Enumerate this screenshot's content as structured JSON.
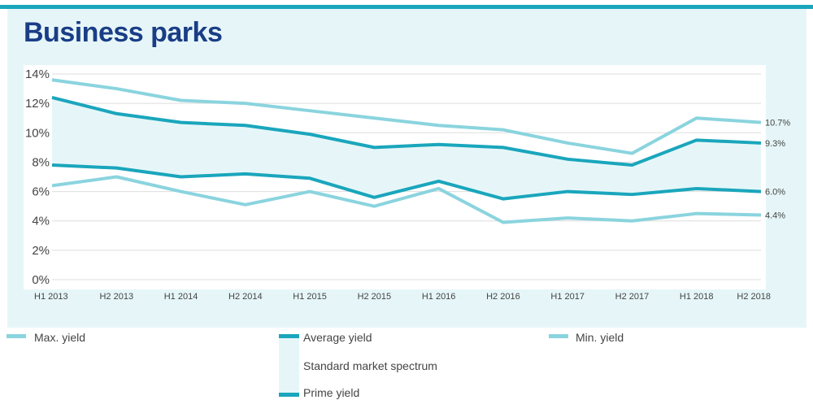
{
  "title": "Business parks",
  "colors": {
    "max": "#8ad4de",
    "avg": "#1aa6bc",
    "prime": "#1aa6bc",
    "min": "#8ad4de",
    "band": "#e6f6f8",
    "title": "#1a3d86",
    "accent": "#1aa6bc"
  },
  "legend": {
    "max": "Max. yield",
    "avg": "Average yield",
    "min": "Min. yield",
    "band": "Standard market spectrum",
    "prime": "Prime yield"
  },
  "chart_data": {
    "type": "line",
    "categories": [
      "H1 2013",
      "H2 2013",
      "H1 2014",
      "H2 2014",
      "H1 2015",
      "H2 2015",
      "H1 2016",
      "H2 2016",
      "H1 2017",
      "H2 2017",
      "H1 2018",
      "H2 2018"
    ],
    "ylim": [
      0,
      14
    ],
    "yticks": [
      0,
      2,
      4,
      6,
      8,
      10,
      12,
      14
    ],
    "ytick_labels": [
      "0%",
      "2%",
      "4%",
      "6%",
      "8%",
      "10%",
      "12%",
      "14%"
    ],
    "series": [
      {
        "key": "max",
        "name": "Max. yield",
        "values": [
          13.6,
          13.0,
          12.2,
          12.0,
          11.5,
          11.0,
          10.5,
          10.2,
          9.3,
          8.6,
          11.0,
          10.7
        ],
        "end_label": "10.7%"
      },
      {
        "key": "avg",
        "name": "Average yield",
        "values": [
          12.4,
          11.3,
          10.7,
          10.5,
          9.9,
          9.0,
          9.2,
          9.0,
          8.2,
          7.8,
          9.5,
          9.3
        ],
        "end_label": "9.3%"
      },
      {
        "key": "prime",
        "name": "Prime yield",
        "values": [
          7.8,
          7.6,
          7.0,
          7.2,
          6.9,
          5.6,
          6.7,
          5.5,
          6.0,
          5.8,
          6.2,
          6.0
        ],
        "end_label": "6.0%"
      },
      {
        "key": "min",
        "name": "Min. yield",
        "values": [
          6.4,
          7.0,
          6.0,
          5.1,
          6.0,
          5.0,
          6.2,
          3.9,
          4.2,
          4.0,
          4.5,
          4.4
        ],
        "end_label": "4.4%"
      }
    ],
    "band_between": [
      "avg",
      "prime"
    ],
    "grid": true
  }
}
